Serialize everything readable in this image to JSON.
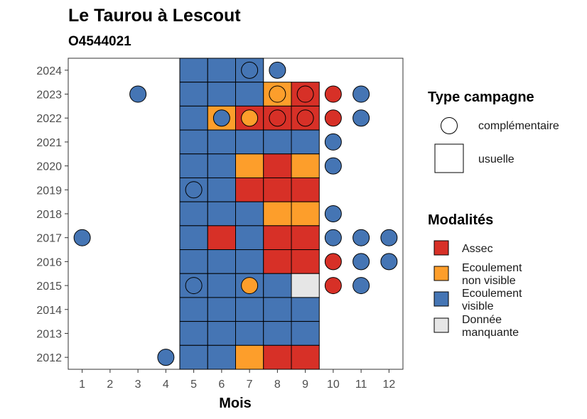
{
  "chart_data": {
    "type": "heatmap",
    "title": "Le Taurou à Lescout",
    "subtitle": "O4544021",
    "xlabel": "Mois",
    "ylabel": "",
    "x_ticks": [
      "1",
      "2",
      "3",
      "4",
      "5",
      "6",
      "7",
      "8",
      "9",
      "10",
      "11",
      "12"
    ],
    "y_ticks": [
      "2012",
      "2013",
      "2014",
      "2015",
      "2016",
      "2017",
      "2018",
      "2019",
      "2020",
      "2021",
      "2022",
      "2023",
      "2024"
    ],
    "xlim": [
      0.5,
      12.5
    ],
    "ylim": [
      2011.5,
      2024.5
    ],
    "grid": false,
    "legend_position": "right",
    "legend_shape": {
      "title": "Type campagne",
      "items": [
        {
          "key": "complementaire",
          "label": "complémentaire",
          "shape": "circle"
        },
        {
          "key": "usuelle",
          "label": "usuelle",
          "shape": "square"
        }
      ]
    },
    "legend_fill": {
      "title": "Modalités",
      "items": [
        {
          "key": "assec",
          "label": "Assec",
          "color": "#d73027"
        },
        {
          "key": "ecoul_nv",
          "label": "Ecoulement non visible",
          "line1": "Ecoulement",
          "line2": "non visible",
          "color": "#fd9e2b"
        },
        {
          "key": "ecoul_v",
          "label": "Ecoulement visible",
          "line1": "Ecoulement",
          "line2": "visible",
          "color": "#4575b4"
        },
        {
          "key": "manquante",
          "label": "Donnée manquante",
          "line1": "Donnée",
          "line2": "manquante",
          "color": "#e6e6e6"
        }
      ]
    },
    "usuelle": [
      {
        "year": 2024,
        "values": {
          "5": "ecoul_v",
          "6": "ecoul_v",
          "7": "ecoul_v"
        }
      },
      {
        "year": 2023,
        "values": {
          "5": "ecoul_v",
          "6": "ecoul_v",
          "7": "ecoul_v",
          "8": "ecoul_nv",
          "9": "assec"
        }
      },
      {
        "year": 2022,
        "values": {
          "5": "ecoul_v",
          "6": "ecoul_nv",
          "7": "assec",
          "8": "assec",
          "9": "assec"
        }
      },
      {
        "year": 2021,
        "values": {
          "5": "ecoul_v",
          "6": "ecoul_v",
          "7": "ecoul_v",
          "8": "ecoul_v",
          "9": "ecoul_v"
        }
      },
      {
        "year": 2020,
        "values": {
          "5": "ecoul_v",
          "6": "ecoul_v",
          "7": "ecoul_nv",
          "8": "assec",
          "9": "ecoul_nv"
        }
      },
      {
        "year": 2019,
        "values": {
          "5": "ecoul_v",
          "6": "ecoul_v",
          "7": "assec",
          "8": "assec",
          "9": "assec"
        }
      },
      {
        "year": 2018,
        "values": {
          "5": "ecoul_v",
          "6": "ecoul_v",
          "7": "ecoul_v",
          "8": "ecoul_nv",
          "9": "ecoul_nv"
        }
      },
      {
        "year": 2017,
        "values": {
          "5": "ecoul_v",
          "6": "assec",
          "7": "ecoul_v",
          "8": "assec",
          "9": "assec"
        }
      },
      {
        "year": 2016,
        "values": {
          "5": "ecoul_v",
          "6": "ecoul_v",
          "7": "ecoul_v",
          "8": "assec",
          "9": "assec"
        }
      },
      {
        "year": 2015,
        "values": {
          "5": "ecoul_v",
          "6": "ecoul_v",
          "7": "ecoul_v",
          "8": "ecoul_v",
          "9": "manquante"
        }
      },
      {
        "year": 2014,
        "values": {
          "5": "ecoul_v",
          "6": "ecoul_v",
          "7": "ecoul_v",
          "8": "ecoul_v",
          "9": "ecoul_v"
        }
      },
      {
        "year": 2013,
        "values": {
          "5": "ecoul_v",
          "6": "ecoul_v",
          "7": "ecoul_v",
          "8": "ecoul_v",
          "9": "ecoul_v"
        }
      },
      {
        "year": 2012,
        "values": {
          "5": "ecoul_v",
          "6": "ecoul_v",
          "7": "ecoul_nv",
          "8": "assec",
          "9": "assec"
        }
      }
    ],
    "complementaire": [
      {
        "year": 2024,
        "month": 7,
        "value": "ecoul_v"
      },
      {
        "year": 2024,
        "month": 8,
        "value": "ecoul_v"
      },
      {
        "year": 2023,
        "month": 3,
        "value": "ecoul_v"
      },
      {
        "year": 2023,
        "month": 8,
        "value": "ecoul_nv"
      },
      {
        "year": 2023,
        "month": 9,
        "value": "assec"
      },
      {
        "year": 2023,
        "month": 10,
        "value": "assec"
      },
      {
        "year": 2023,
        "month": 11,
        "value": "ecoul_v"
      },
      {
        "year": 2022,
        "month": 6,
        "value": "ecoul_v"
      },
      {
        "year": 2022,
        "month": 7,
        "value": "ecoul_nv"
      },
      {
        "year": 2022,
        "month": 8,
        "value": "assec"
      },
      {
        "year": 2022,
        "month": 9,
        "value": "assec"
      },
      {
        "year": 2022,
        "month": 10,
        "value": "assec"
      },
      {
        "year": 2022,
        "month": 11,
        "value": "ecoul_v"
      },
      {
        "year": 2021,
        "month": 10,
        "value": "ecoul_v"
      },
      {
        "year": 2020,
        "month": 10,
        "value": "ecoul_v"
      },
      {
        "year": 2019,
        "month": 5,
        "value": "ecoul_v"
      },
      {
        "year": 2018,
        "month": 10,
        "value": "ecoul_v"
      },
      {
        "year": 2017,
        "month": 1,
        "value": "ecoul_v"
      },
      {
        "year": 2017,
        "month": 10,
        "value": "ecoul_v"
      },
      {
        "year": 2017,
        "month": 11,
        "value": "ecoul_v"
      },
      {
        "year": 2017,
        "month": 12,
        "value": "ecoul_v"
      },
      {
        "year": 2016,
        "month": 10,
        "value": "assec"
      },
      {
        "year": 2016,
        "month": 11,
        "value": "ecoul_v"
      },
      {
        "year": 2016,
        "month": 12,
        "value": "ecoul_v"
      },
      {
        "year": 2015,
        "month": 5,
        "value": "ecoul_v"
      },
      {
        "year": 2015,
        "month": 7,
        "value": "ecoul_nv"
      },
      {
        "year": 2015,
        "month": 10,
        "value": "assec"
      },
      {
        "year": 2015,
        "month": 11,
        "value": "ecoul_v"
      },
      {
        "year": 2012,
        "month": 4,
        "value": "ecoul_v"
      }
    ]
  }
}
